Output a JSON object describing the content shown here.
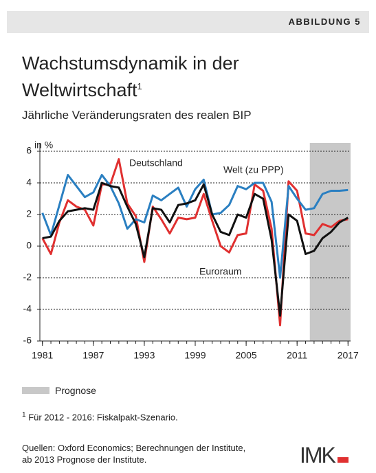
{
  "figure_label": "ABBILDUNG 5",
  "chart_data": {
    "type": "line",
    "title": "Wachstumsdynamik in der Weltwirtschaft",
    "title_note": "1",
    "subtitle": "Jährliche Veränderungsraten des realen BIP",
    "y_label": "in %",
    "x": [
      1981,
      1982,
      1983,
      1984,
      1985,
      1986,
      1987,
      1988,
      1989,
      1990,
      1991,
      1992,
      1993,
      1994,
      1995,
      1996,
      1997,
      1998,
      1999,
      2000,
      2001,
      2002,
      2003,
      2004,
      2005,
      2006,
      2007,
      2008,
      2009,
      2010,
      2011,
      2012,
      2013,
      2014,
      2015,
      2016,
      2017
    ],
    "series": [
      {
        "name": "Welt (zu PPP)",
        "color": "#2a7fc1",
        "values": [
          2.1,
          0.7,
          2.6,
          4.5,
          3.8,
          3.1,
          3.4,
          4.5,
          3.8,
          2.7,
          1.1,
          1.7,
          1.5,
          3.2,
          2.9,
          3.3,
          3.7,
          2.5,
          3.6,
          4.2,
          2.0,
          2.1,
          2.6,
          3.8,
          3.6,
          4.0,
          4.0,
          2.8,
          -2.0,
          3.8,
          3.0,
          2.3,
          2.4,
          3.3,
          3.5,
          3.5,
          3.55
        ]
      },
      {
        "name": "Deutschland",
        "color": "#e03030",
        "values": [
          0.5,
          -0.5,
          1.5,
          2.9,
          2.5,
          2.3,
          1.3,
          3.9,
          3.9,
          5.5,
          2.7,
          1.9,
          -1.0,
          2.5,
          1.7,
          0.8,
          1.8,
          1.7,
          1.8,
          3.3,
          1.6,
          0.0,
          -0.4,
          0.7,
          0.8,
          3.9,
          3.5,
          1.1,
          -5.0,
          4.1,
          3.5,
          0.8,
          0.7,
          1.4,
          1.2,
          1.6,
          1.7
        ]
      },
      {
        "name": "Euroraum",
        "color": "#111111",
        "values": [
          0.5,
          0.6,
          1.6,
          2.2,
          2.3,
          2.4,
          2.3,
          4.0,
          3.8,
          3.7,
          2.5,
          1.4,
          -0.7,
          2.4,
          2.3,
          1.5,
          2.6,
          2.7,
          2.9,
          3.9,
          2.0,
          0.9,
          0.7,
          2.0,
          1.8,
          3.3,
          3.0,
          0.4,
          -4.4,
          2.0,
          1.6,
          -0.5,
          -0.3,
          0.5,
          0.9,
          1.5,
          1.8
        ]
      }
    ],
    "xlim": [
      1980.7,
      2017.3
    ],
    "xticks": [
      1981,
      1987,
      1993,
      1999,
      2005,
      2011,
      2017
    ],
    "ylim": [
      -6,
      6
    ],
    "yticks": [
      -6,
      -4,
      -2,
      0,
      2,
      4,
      6
    ],
    "grid": true,
    "shade": {
      "label": "Prognose",
      "color": "#c8c8c8",
      "x": [
        2012.5,
        2017.3
      ]
    }
  },
  "footnote": {
    "mark": "1",
    "text": "Für 2012 - 2016: Fiskalpakt-Szenario."
  },
  "source": "Quellen: Oxford Economics; Berechnungen der Institute, ab 2013 Prognose der Institute.",
  "logo": "IMK"
}
